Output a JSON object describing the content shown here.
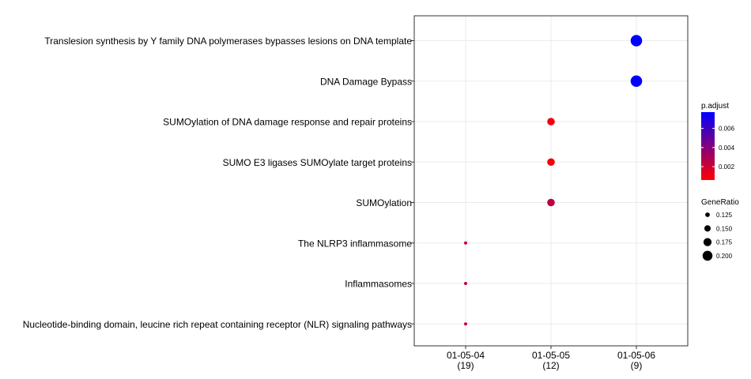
{
  "chart_data": {
    "type": "scatter",
    "title": "",
    "xlabel": "",
    "ylabel": "",
    "grid": true,
    "legend_position": "right",
    "x_categories": [
      {
        "label": "01-05-04",
        "count": "(19)"
      },
      {
        "label": "01-05-05",
        "count": "(12)"
      },
      {
        "label": "01-05-06",
        "count": "(9)"
      }
    ],
    "y_categories": [
      "Translesion synthesis by Y family DNA polymerases bypasses lesions on DNA template",
      "DNA Damage Bypass",
      "SUMOylation of DNA damage response and repair proteins",
      "SUMO E3 ligases SUMOylate target proteins",
      "SUMOylation",
      "The NLRP3 inflammasome",
      "Inflammasomes",
      "Nucleotide-binding domain, leucine rich repeat containing receptor (NLR) signaling pathways"
    ],
    "points": [
      {
        "x": "01-05-06",
        "y": "Translesion synthesis by Y family DNA polymerases bypasses lesions on DNA template",
        "gene_ratio": 0.222,
        "p_adjust": 0.0077
      },
      {
        "x": "01-05-06",
        "y": "DNA Damage Bypass",
        "gene_ratio": 0.222,
        "p_adjust": 0.0077
      },
      {
        "x": "01-05-05",
        "y": "SUMOylation of DNA damage response and repair proteins",
        "gene_ratio": 0.167,
        "p_adjust": 0.0009
      },
      {
        "x": "01-05-05",
        "y": "SUMO E3 ligases SUMOylate target proteins",
        "gene_ratio": 0.167,
        "p_adjust": 0.0009
      },
      {
        "x": "01-05-05",
        "y": "SUMOylation",
        "gene_ratio": 0.167,
        "p_adjust": 0.0025
      },
      {
        "x": "01-05-04",
        "y": "The NLRP3 inflammasome",
        "gene_ratio": 0.105,
        "p_adjust": 0.0022
      },
      {
        "x": "01-05-04",
        "y": "Inflammasomes",
        "gene_ratio": 0.105,
        "p_adjust": 0.0022
      },
      {
        "x": "01-05-04",
        "y": "Nucleotide-binding domain, leucine rich repeat containing receptor (NLR) signaling pathways",
        "gene_ratio": 0.105,
        "p_adjust": 0.0022
      }
    ],
    "color_legend": {
      "title": "p.adjust",
      "range": [
        0.0006,
        0.0077
      ],
      "ticks": [
        0.002,
        0.004,
        0.006
      ],
      "tick_labels": [
        "0.002",
        "0.004",
        "0.006"
      ],
      "low_color": "#ff0000",
      "high_color": "#0000ff"
    },
    "size_legend": {
      "title": "GeneRatio",
      "ticks": [
        0.125,
        0.15,
        0.175,
        0.2
      ],
      "tick_labels": [
        "0.125",
        "0.150",
        "0.175",
        "0.200"
      ]
    }
  }
}
